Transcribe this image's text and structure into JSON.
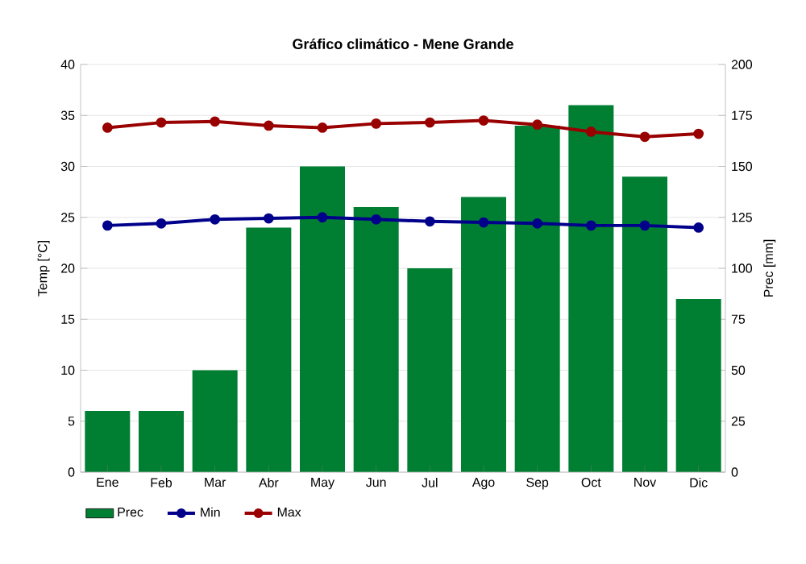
{
  "chart_data": {
    "type": "line",
    "title": "Gráfico climático - Mene Grande",
    "ylabel": "Temp [°C]",
    "y2label": "Prec [mm]",
    "categories": [
      "Ene",
      "Feb",
      "Mar",
      "Abr",
      "May",
      "Jun",
      "Jul",
      "Ago",
      "Sep",
      "Oct",
      "Nov",
      "Dic"
    ],
    "series": [
      {
        "name": "Prec",
        "type": "bar",
        "axis": "y2",
        "color": "#007f32",
        "values": [
          30,
          30,
          50,
          120,
          150,
          130,
          100,
          135,
          170,
          180,
          145,
          85
        ]
      },
      {
        "name": "Min",
        "color": "#00008b",
        "values": [
          24.2,
          24.4,
          24.8,
          24.9,
          25.0,
          24.8,
          24.6,
          24.5,
          24.4,
          24.2,
          24.2,
          24.0
        ]
      },
      {
        "name": "Max",
        "color": "#990000",
        "values": [
          33.8,
          34.3,
          34.4,
          34.0,
          33.8,
          34.2,
          34.3,
          34.5,
          34.1,
          33.4,
          32.9,
          33.2
        ]
      }
    ],
    "ylim": [
      0,
      40
    ],
    "yticks": [
      0,
      5,
      10,
      15,
      20,
      25,
      30,
      35,
      40
    ],
    "y2lim": [
      0,
      200
    ],
    "y2ticks": [
      0,
      25,
      50,
      75,
      100,
      125,
      150,
      175,
      200
    ],
    "grid": true,
    "legend": "bottom",
    "marker": "circle",
    "line_style": "solid"
  }
}
